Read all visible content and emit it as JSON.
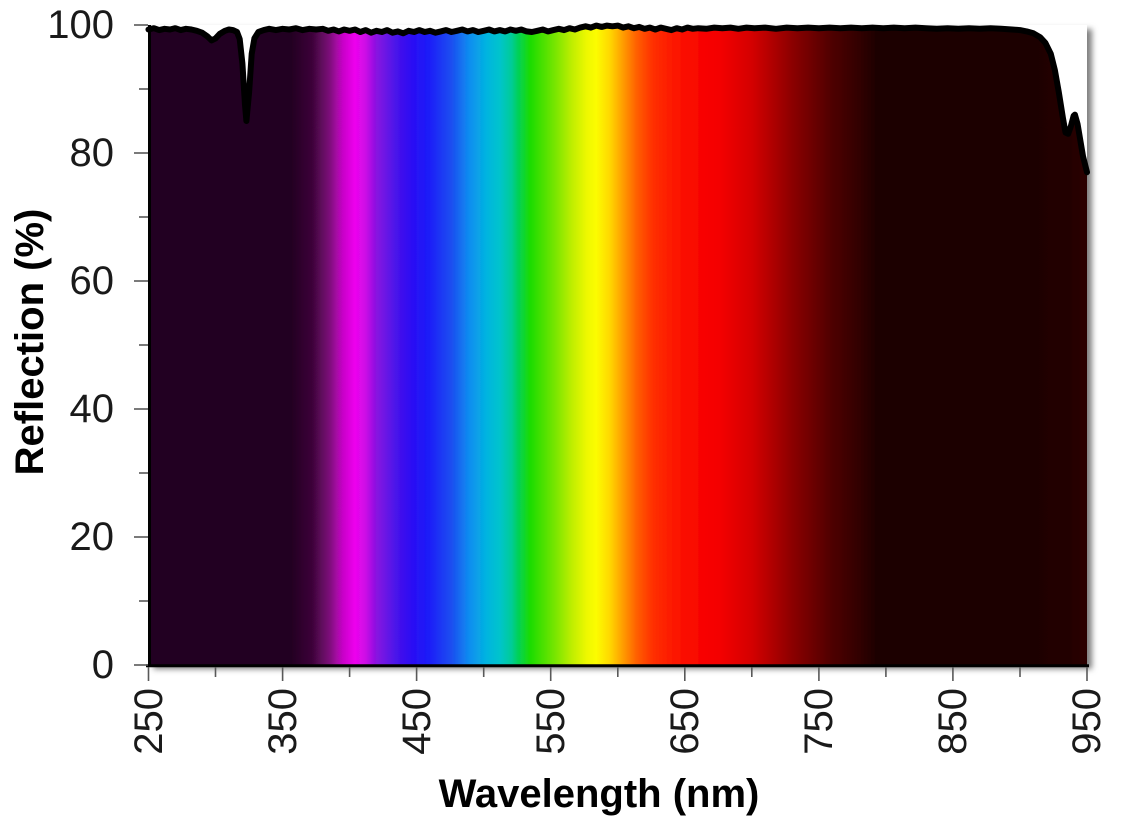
{
  "chart_data": {
    "type": "area",
    "title": "",
    "xlabel": "Wavelength (nm)",
    "ylabel": "Reflection (%)",
    "grid": false,
    "legend": false,
    "x_axis": {
      "min": 250,
      "max": 950,
      "major_ticks": [
        250,
        350,
        450,
        550,
        650,
        750,
        850,
        950
      ],
      "major_tick_labels": [
        "250",
        "350",
        "450",
        "550",
        "650",
        "750",
        "850",
        "950"
      ],
      "minor_ticks": [
        300,
        400,
        500,
        600,
        700,
        800,
        900
      ]
    },
    "y_axis": {
      "min": 0,
      "max": 100,
      "major_ticks": [
        0,
        20,
        40,
        60,
        80,
        100
      ],
      "major_tick_labels": [
        "0",
        "20",
        "40",
        "60",
        "80",
        "100"
      ],
      "minor_ticks": [
        10,
        30,
        50,
        70,
        90
      ]
    },
    "curve_points": [
      [
        250,
        99.3
      ],
      [
        254,
        99.5
      ],
      [
        258,
        99.2
      ],
      [
        262,
        99.4
      ],
      [
        266,
        99.3
      ],
      [
        270,
        99.5
      ],
      [
        274,
        99.2
      ],
      [
        278,
        99.4
      ],
      [
        282,
        99.3
      ],
      [
        286,
        99.1
      ],
      [
        290,
        98.8
      ],
      [
        294,
        98.2
      ],
      [
        297,
        97.6
      ],
      [
        300,
        97.9
      ],
      [
        303,
        98.6
      ],
      [
        307,
        99.1
      ],
      [
        310,
        99.3
      ],
      [
        313,
        99.2
      ],
      [
        316,
        98.9
      ],
      [
        318,
        97.8
      ],
      [
        320,
        94.0
      ],
      [
        322,
        87.5
      ],
      [
        323,
        85.0
      ],
      [
        325,
        89.5
      ],
      [
        327,
        95.5
      ],
      [
        329,
        97.9
      ],
      [
        332,
        98.9
      ],
      [
        336,
        99.2
      ],
      [
        340,
        99.4
      ],
      [
        345,
        99.2
      ],
      [
        350,
        99.4
      ],
      [
        355,
        99.3
      ],
      [
        360,
        99.5
      ],
      [
        365,
        99.2
      ],
      [
        370,
        99.4
      ],
      [
        375,
        99.3
      ],
      [
        380,
        99.4
      ],
      [
        384,
        99.1
      ],
      [
        388,
        99.3
      ],
      [
        392,
        99.0
      ],
      [
        396,
        99.3
      ],
      [
        400,
        99.1
      ],
      [
        404,
        99.3
      ],
      [
        408,
        98.9
      ],
      [
        412,
        99.2
      ],
      [
        416,
        98.8
      ],
      [
        420,
        99.1
      ],
      [
        424,
        98.9
      ],
      [
        428,
        99.2
      ],
      [
        432,
        98.8
      ],
      [
        436,
        99.0
      ],
      [
        440,
        98.7
      ],
      [
        444,
        99.1
      ],
      [
        448,
        98.9
      ],
      [
        452,
        99.2
      ],
      [
        456,
        98.9
      ],
      [
        460,
        99.1
      ],
      [
        464,
        98.8
      ],
      [
        468,
        99.0
      ],
      [
        472,
        99.2
      ],
      [
        476,
        98.9
      ],
      [
        480,
        99.1
      ],
      [
        484,
        99.3
      ],
      [
        488,
        99.0
      ],
      [
        492,
        99.2
      ],
      [
        496,
        98.9
      ],
      [
        500,
        99.1
      ],
      [
        504,
        99.3
      ],
      [
        508,
        99.0
      ],
      [
        512,
        99.2
      ],
      [
        516,
        99.0
      ],
      [
        520,
        99.3
      ],
      [
        524,
        99.1
      ],
      [
        528,
        99.3
      ],
      [
        532,
        99.0
      ],
      [
        536,
        98.9
      ],
      [
        540,
        99.1
      ],
      [
        544,
        99.3
      ],
      [
        548,
        99.0
      ],
      [
        552,
        99.2
      ],
      [
        556,
        99.4
      ],
      [
        560,
        99.2
      ],
      [
        564,
        99.5
      ],
      [
        568,
        99.3
      ],
      [
        572,
        99.6
      ],
      [
        576,
        99.8
      ],
      [
        580,
        99.6
      ],
      [
        584,
        99.9
      ],
      [
        588,
        99.7
      ],
      [
        592,
        99.9
      ],
      [
        596,
        99.8
      ],
      [
        600,
        99.9
      ],
      [
        604,
        99.6
      ],
      [
        608,
        99.8
      ],
      [
        612,
        99.5
      ],
      [
        616,
        99.7
      ],
      [
        620,
        99.4
      ],
      [
        624,
        99.6
      ],
      [
        628,
        99.3
      ],
      [
        632,
        99.6
      ],
      [
        636,
        99.4
      ],
      [
        640,
        99.2
      ],
      [
        644,
        99.5
      ],
      [
        648,
        99.3
      ],
      [
        652,
        99.6
      ],
      [
        656,
        99.4
      ],
      [
        660,
        99.5
      ],
      [
        666,
        99.4
      ],
      [
        672,
        99.6
      ],
      [
        678,
        99.5
      ],
      [
        684,
        99.6
      ],
      [
        690,
        99.4
      ],
      [
        696,
        99.6
      ],
      [
        702,
        99.5
      ],
      [
        710,
        99.6
      ],
      [
        718,
        99.4
      ],
      [
        726,
        99.6
      ],
      [
        734,
        99.5
      ],
      [
        742,
        99.6
      ],
      [
        750,
        99.5
      ],
      [
        758,
        99.6
      ],
      [
        766,
        99.5
      ],
      [
        774,
        99.6
      ],
      [
        782,
        99.5
      ],
      [
        790,
        99.6
      ],
      [
        798,
        99.5
      ],
      [
        806,
        99.6
      ],
      [
        814,
        99.5
      ],
      [
        822,
        99.6
      ],
      [
        830,
        99.5
      ],
      [
        838,
        99.4
      ],
      [
        846,
        99.5
      ],
      [
        854,
        99.4
      ],
      [
        862,
        99.5
      ],
      [
        870,
        99.4
      ],
      [
        878,
        99.5
      ],
      [
        886,
        99.4
      ],
      [
        894,
        99.3
      ],
      [
        900,
        99.2
      ],
      [
        905,
        99.0
      ],
      [
        910,
        98.7
      ],
      [
        915,
        98.1
      ],
      [
        919,
        97.2
      ],
      [
        923,
        95.5
      ],
      [
        926,
        93.0
      ],
      [
        929,
        89.5
      ],
      [
        932,
        85.5
      ],
      [
        934,
        83.2
      ],
      [
        936,
        83.0
      ],
      [
        938,
        84.2
      ],
      [
        940,
        85.8
      ],
      [
        941,
        86.0
      ],
      [
        943,
        84.5
      ],
      [
        945,
        82.0
      ],
      [
        947,
        79.5
      ],
      [
        949,
        77.8
      ],
      [
        950,
        77.0
      ]
    ],
    "spectrum_gradient_stops": [
      [
        250,
        "#200320"
      ],
      [
        355,
        "#210420"
      ],
      [
        372,
        "#3c0639"
      ],
      [
        385,
        "#7c0879"
      ],
      [
        395,
        "#c806c8"
      ],
      [
        404,
        "#ee04ee"
      ],
      [
        412,
        "#cc0ae6"
      ],
      [
        420,
        "#8812e0"
      ],
      [
        435,
        "#4812ea"
      ],
      [
        447,
        "#2a0ef4"
      ],
      [
        459,
        "#1c1cf8"
      ],
      [
        477,
        "#1a52f0"
      ],
      [
        489,
        "#0f8cf0"
      ],
      [
        502,
        "#02b4e0"
      ],
      [
        512,
        "#00c4cc"
      ],
      [
        521,
        "#00cc96"
      ],
      [
        525,
        "#00d060"
      ],
      [
        535,
        "#1cdc00"
      ],
      [
        554,
        "#7ce600"
      ],
      [
        566,
        "#c0ee00"
      ],
      [
        577,
        "#eef800"
      ],
      [
        584,
        "#fcfc00"
      ],
      [
        594,
        "#ffd800"
      ],
      [
        604,
        "#ff9c00"
      ],
      [
        614,
        "#ff6000"
      ],
      [
        626,
        "#ff3000"
      ],
      [
        644,
        "#fc1400"
      ],
      [
        663,
        "#f80400"
      ],
      [
        676,
        "#f40000"
      ],
      [
        700,
        "#d40000"
      ],
      [
        730,
        "#8c0000"
      ],
      [
        760,
        "#4e0000"
      ],
      [
        788,
        "#260000"
      ],
      [
        793,
        "#1d0101"
      ],
      [
        900,
        "#1d0101"
      ],
      [
        935,
        "#220202"
      ],
      [
        950,
        "#2c0303"
      ]
    ],
    "colors": {
      "curve": "#000000",
      "axis": "#000000",
      "tick": "#595959",
      "background": "#ffffff",
      "above_curve_fill": "#ffffff"
    }
  }
}
